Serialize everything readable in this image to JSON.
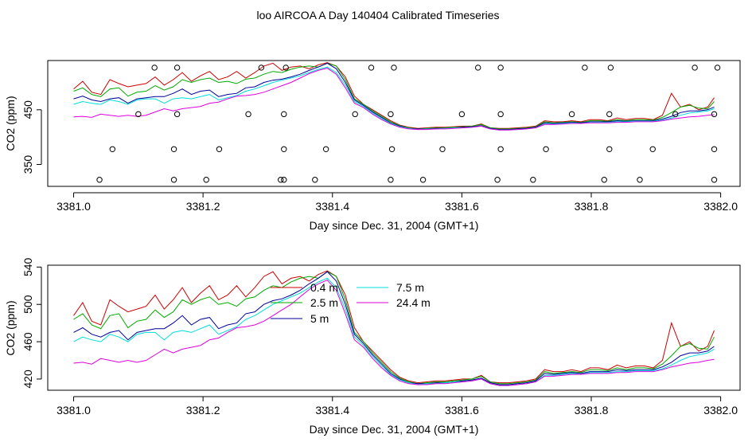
{
  "figure": {
    "title": "loo AIRCOA A  Day 140404  Calibrated Timeseries"
  },
  "chart_data": [
    {
      "type": "line",
      "xlabel": "Day since Dec. 31, 2004 (GMT+1)",
      "ylabel": "CO2 (ppm)",
      "xlim": [
        3380.96,
        3382.03
      ],
      "ylim": [
        310,
        540
      ],
      "xticks": [
        3381.0,
        3381.2,
        3381.4,
        3381.6,
        3381.8,
        3382.0
      ],
      "xtick_labels": [
        "3381.0",
        "3381.2",
        "3381.4",
        "3381.6",
        "3381.8",
        "3382.0"
      ],
      "yticks": [
        350,
        450
      ],
      "ytick_labels": [
        "350",
        "450"
      ],
      "series_colors": [
        "#cc0000",
        "#00aa00",
        "#000099",
        "#00dddd",
        "#dd00dd"
      ],
      "flag_points": {
        "x": [
          3381.04,
          3381.06,
          3381.1,
          3381.125,
          3381.155,
          3381.155,
          3381.16,
          3381.16,
          3381.205,
          3381.225,
          3381.27,
          3381.29,
          3381.32,
          3381.325,
          3381.325,
          3381.328,
          3381.325,
          3381.373,
          3381.39,
          3381.435,
          3381.46,
          3381.49,
          3381.492,
          3381.49,
          3381.495,
          3381.54,
          3381.57,
          3381.6,
          3381.625,
          3381.655,
          3381.66,
          3381.66,
          3381.66,
          3381.71,
          3381.73,
          3381.77,
          3381.79,
          3381.82,
          3381.828,
          3381.828,
          3381.83,
          3381.875,
          3381.895,
          3381.93,
          3381.96,
          3381.99,
          3381.99,
          3381.99,
          3381.995
        ],
        "y": [
          322,
          378,
          442,
          527,
          322,
          378,
          442,
          527,
          322,
          378,
          442,
          527,
          322,
          378,
          442,
          527,
          322,
          322,
          378,
          442,
          527,
          322,
          378,
          442,
          527,
          322,
          378,
          442,
          527,
          322,
          378,
          442,
          527,
          322,
          378,
          442,
          527,
          322,
          378,
          442,
          527,
          322,
          378,
          442,
          527,
          322,
          378,
          442,
          527
        ]
      }
    },
    {
      "type": "line",
      "xlabel": "Day since Dec. 31, 2004 (GMT+1)",
      "ylabel": "CO2 (ppm)",
      "xlim": [
        3380.96,
        3382.03
      ],
      "ylim": [
        408,
        542
      ],
      "xticks": [
        3381.0,
        3381.2,
        3381.4,
        3381.6,
        3381.8,
        3382.0
      ],
      "xtick_labels": [
        "3381.0",
        "3381.2",
        "3381.4",
        "3381.6",
        "3381.8",
        "3382.0"
      ],
      "yticks": [
        420,
        460,
        500,
        540
      ],
      "ytick_labels": [
        "420",
        "460",
        "500",
        "540"
      ],
      "legend": {
        "placement": "top-center",
        "entries": [
          {
            "label": "0.4 m",
            "color": "#cc0000"
          },
          {
            "label": "2.5 m",
            "color": "#00aa00"
          },
          {
            "label": "5 m",
            "color": "#000099"
          },
          {
            "label": "7.5 m",
            "color": "#00dddd"
          },
          {
            "label": "24.4 m",
            "color": "#dd00dd"
          }
        ]
      },
      "x": [
        3381.0,
        3381.014,
        3381.028,
        3381.042,
        3381.056,
        3381.07,
        3381.084,
        3381.098,
        3381.112,
        3381.126,
        3381.14,
        3381.154,
        3381.168,
        3381.182,
        3381.196,
        3381.21,
        3381.224,
        3381.238,
        3381.252,
        3381.266,
        3381.28,
        3381.294,
        3381.308,
        3381.322,
        3381.336,
        3381.35,
        3381.364,
        3381.378,
        3381.392,
        3381.406,
        3381.42,
        3381.434,
        3381.448,
        3381.462,
        3381.476,
        3381.49,
        3381.504,
        3381.518,
        3381.532,
        3381.546,
        3381.56,
        3381.574,
        3381.588,
        3381.602,
        3381.616,
        3381.63,
        3381.644,
        3381.658,
        3381.672,
        3381.686,
        3381.7,
        3381.714,
        3381.728,
        3381.742,
        3381.756,
        3381.77,
        3381.784,
        3381.798,
        3381.812,
        3381.826,
        3381.84,
        3381.854,
        3381.868,
        3381.882,
        3381.896,
        3381.91,
        3381.924,
        3381.938,
        3381.952,
        3381.966,
        3381.98,
        3381.99
      ],
      "series": [
        {
          "name": "0.4 m",
          "values": [
            488,
            502,
            482,
            478,
            505,
            498,
            492,
            495,
            498,
            510,
            495,
            505,
            518,
            502,
            512,
            520,
            505,
            510,
            520,
            508,
            518,
            530,
            535,
            522,
            528,
            530,
            525,
            532,
            536,
            530,
            510,
            475,
            460,
            450,
            440,
            430,
            422,
            418,
            416,
            417,
            418,
            418,
            419,
            420,
            420,
            424,
            417,
            416,
            416,
            417,
            418,
            420,
            430,
            428,
            428,
            430,
            428,
            432,
            432,
            430,
            435,
            432,
            434,
            434,
            432,
            440,
            480,
            455,
            460,
            450,
            455,
            472
          ]
        },
        {
          "name": "2.5 m",
          "values": [
            484,
            490,
            478,
            474,
            488,
            490,
            475,
            482,
            484,
            494,
            486,
            492,
            505,
            500,
            505,
            508,
            500,
            502,
            498,
            506,
            508,
            515,
            520,
            518,
            524,
            528,
            530,
            528,
            535,
            530,
            505,
            470,
            460,
            448,
            438,
            428,
            421,
            417,
            415,
            416,
            417,
            417,
            418,
            419,
            420,
            423,
            417,
            415,
            415,
            416,
            417,
            419,
            428,
            426,
            427,
            428,
            427,
            430,
            430,
            429,
            432,
            430,
            432,
            432,
            431,
            436,
            445,
            455,
            458,
            453,
            452,
            465
          ]
        },
        {
          "name": "5 m",
          "values": [
            470,
            475,
            468,
            465,
            470,
            472,
            462,
            470,
            472,
            474,
            474,
            480,
            488,
            478,
            484,
            486,
            474,
            478,
            480,
            490,
            492,
            500,
            504,
            506,
            510,
            515,
            522,
            528,
            535,
            525,
            500,
            468,
            458,
            446,
            436,
            426,
            420,
            416,
            415,
            415,
            416,
            416,
            417,
            418,
            419,
            421,
            416,
            414,
            414,
            415,
            416,
            418,
            426,
            425,
            426,
            427,
            426,
            428,
            428,
            428,
            430,
            429,
            430,
            430,
            430,
            433,
            438,
            445,
            448,
            448,
            450,
            455
          ]
        },
        {
          "name": "7.5 m",
          "values": [
            460,
            465,
            462,
            460,
            468,
            465,
            460,
            468,
            470,
            470,
            462,
            470,
            472,
            470,
            474,
            478,
            468,
            472,
            476,
            484,
            488,
            494,
            500,
            504,
            508,
            512,
            518,
            524,
            528,
            518,
            495,
            465,
            456,
            444,
            434,
            425,
            419,
            416,
            414,
            415,
            415,
            416,
            417,
            417,
            418,
            420,
            415,
            413,
            413,
            414,
            415,
            417,
            424,
            424,
            425,
            426,
            425,
            427,
            427,
            427,
            428,
            428,
            429,
            429,
            429,
            431,
            435,
            440,
            444,
            446,
            448,
            452
          ]
        },
        {
          "name": "24.4 m",
          "values": [
            437,
            438,
            436,
            442,
            440,
            438,
            440,
            438,
            440,
            446,
            452,
            448,
            452,
            454,
            456,
            462,
            464,
            470,
            475,
            476,
            478,
            482,
            488,
            494,
            500,
            508,
            516,
            522,
            526,
            515,
            490,
            462,
            454,
            442,
            432,
            424,
            418,
            415,
            414,
            414,
            415,
            415,
            416,
            417,
            418,
            420,
            415,
            413,
            413,
            414,
            415,
            417,
            423,
            423,
            424,
            425,
            425,
            426,
            426,
            426,
            427,
            427,
            428,
            428,
            428,
            430,
            433,
            435,
            437,
            438,
            440,
            441
          ]
        }
      ]
    }
  ]
}
